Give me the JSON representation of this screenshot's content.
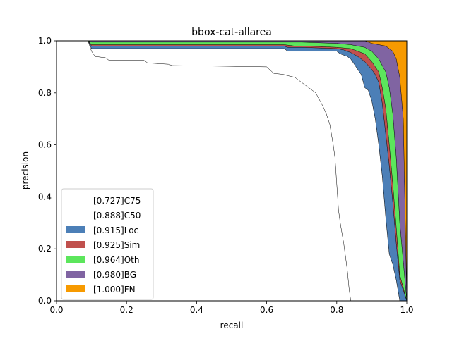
{
  "chart_data": {
    "type": "area",
    "title": "bbox-cat-allarea",
    "xlabel": "recall",
    "ylabel": "precision",
    "xlim": [
      0,
      1
    ],
    "ylim": [
      0,
      1
    ],
    "xticks": [
      "0.0",
      "0.2",
      "0.4",
      "0.6",
      "0.8",
      "1.0"
    ],
    "yticks": [
      "0.0",
      "0.2",
      "0.4",
      "0.6",
      "0.8",
      "1.0"
    ],
    "grid": false,
    "legend_position": "lower-left",
    "series": [
      {
        "name": "[0.727]C75",
        "color": "#ffffff",
        "x": [
          0,
          0.09,
          0.1,
          0.11,
          0.14,
          0.15,
          0.25,
          0.26,
          0.32,
          0.33,
          0.45,
          0.6,
          0.62,
          0.64,
          0.65,
          0.66,
          0.68,
          0.7,
          0.71,
          0.72,
          0.74,
          0.76,
          0.77,
          0.78,
          0.79,
          0.795,
          0.8,
          0.805,
          0.81,
          0.82,
          0.83,
          0.835,
          0.84,
          1
        ],
        "y": [
          1,
          1,
          0.96,
          0.94,
          0.935,
          0.925,
          0.925,
          0.915,
          0.91,
          0.905,
          0.903,
          0.9,
          0.875,
          0.872,
          0.87,
          0.866,
          0.86,
          0.84,
          0.83,
          0.82,
          0.8,
          0.75,
          0.72,
          0.68,
          0.6,
          0.55,
          0.45,
          0.35,
          0.3,
          0.22,
          0.12,
          0.05,
          0,
          0
        ]
      },
      {
        "name": "[0.888]C50",
        "color": "#ffffff",
        "x": [
          0,
          0.09,
          0.1,
          0.65,
          0.66,
          0.7,
          0.8,
          0.81,
          0.83,
          0.84,
          0.85,
          0.87,
          0.88,
          0.89,
          0.9,
          0.91,
          0.92,
          0.93,
          0.94,
          0.95,
          0.96,
          0.97,
          0.98,
          1
        ],
        "y": [
          1,
          1,
          0.97,
          0.97,
          0.96,
          0.96,
          0.96,
          0.95,
          0.94,
          0.93,
          0.91,
          0.87,
          0.82,
          0.81,
          0.77,
          0.7,
          0.6,
          0.48,
          0.32,
          0.18,
          0.14,
          0.08,
          0,
          0
        ]
      },
      {
        "name": "[0.915]Loc",
        "color": "#4c7fb7",
        "x": [
          0,
          0.09,
          0.1,
          0.65,
          0.66,
          0.7,
          0.8,
          0.82,
          0.84,
          0.86,
          0.88,
          0.9,
          0.91,
          0.92,
          0.93,
          0.94,
          0.95,
          0.96,
          0.97,
          0.98,
          1
        ],
        "y": [
          1,
          1,
          0.98,
          0.98,
          0.975,
          0.975,
          0.97,
          0.965,
          0.955,
          0.94,
          0.92,
          0.89,
          0.87,
          0.84,
          0.76,
          0.64,
          0.52,
          0.38,
          0.22,
          0.08,
          0
        ]
      },
      {
        "name": "[0.925]Sim",
        "color": "#c0504d",
        "x": [
          0,
          0.09,
          0.1,
          0.65,
          0.68,
          0.7,
          0.75,
          0.8,
          0.84,
          0.86,
          0.88,
          0.9,
          0.92,
          0.93,
          0.94,
          0.95,
          0.96,
          0.97,
          0.98,
          1
        ],
        "y": [
          1,
          1,
          0.985,
          0.985,
          0.98,
          0.98,
          0.978,
          0.975,
          0.97,
          0.96,
          0.95,
          0.92,
          0.88,
          0.82,
          0.74,
          0.6,
          0.45,
          0.28,
          0.1,
          0
        ]
      },
      {
        "name": "[0.964]Oth",
        "color": "#5ce65c",
        "x": [
          0,
          0.09,
          0.1,
          0.7,
          0.8,
          0.84,
          0.86,
          0.88,
          0.9,
          0.92,
          0.94,
          0.95,
          0.96,
          0.97,
          0.98,
          1
        ],
        "y": [
          1,
          1,
          0.995,
          0.995,
          0.99,
          0.985,
          0.98,
          0.975,
          0.96,
          0.93,
          0.88,
          0.82,
          0.72,
          0.55,
          0.3,
          0
        ]
      },
      {
        "name": "[0.980]BG",
        "color": "#8064a2",
        "x": [
          0,
          0.86,
          0.88,
          0.9,
          0.92,
          0.94,
          0.95,
          0.96,
          0.97,
          0.98,
          0.99,
          1
        ],
        "y": [
          1,
          1,
          1,
          0.99,
          0.985,
          0.98,
          0.97,
          0.96,
          0.93,
          0.86,
          0.7,
          0
        ]
      },
      {
        "name": "[1.000]FN",
        "color": "#f79a00",
        "x": [
          0,
          0.98,
          0.99,
          1
        ],
        "y": [
          1,
          1,
          1,
          1
        ]
      }
    ]
  }
}
